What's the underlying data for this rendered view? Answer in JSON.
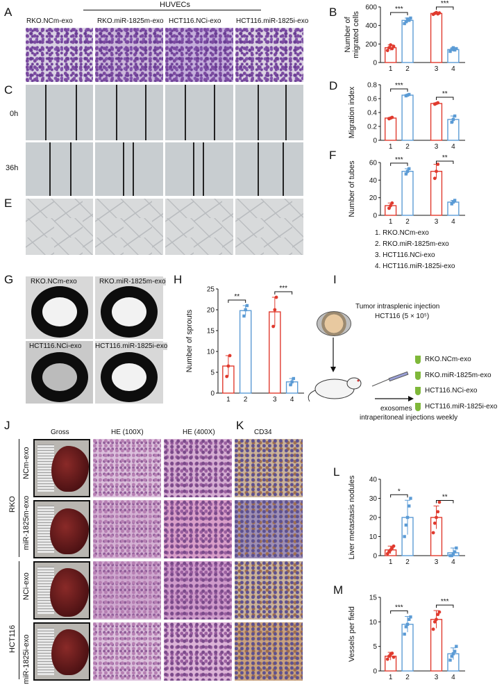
{
  "panels": {
    "A": "A",
    "B": "B",
    "C": "C",
    "D": "D",
    "E": "E",
    "F": "F",
    "G": "G",
    "H": "H",
    "I": "I",
    "J": "J",
    "K": "K",
    "L": "L",
    "M": "M"
  },
  "huvec_title": "HUVECs",
  "huvec_cols": [
    "RKO.NCm-exo",
    "RKO.miR-1825m-exo",
    "HCT116.NCi-exo",
    "HCT116.miR-1825i-exo"
  ],
  "time_labels": [
    "0h",
    "36h"
  ],
  "legend_items": [
    "1. RKO.NCm-exo",
    "2. RKO.miR-1825m-exo",
    "3. HCT116.NCi-exo",
    "4. HCT116.miR-1825i-exo"
  ],
  "aortic_labels": [
    "RKO.NCm-exo",
    "RKO.miR-1825m-exo",
    "HCT116.NCi-exo",
    "HCT116.miR-1825i-exo"
  ],
  "schematic": {
    "injection_line1": "Tumor intrasplenic injection",
    "injection_line2": "HCT116 (5 × 10⁵)",
    "exo_list": [
      "RKO.NCm-exo",
      "RKO.miR-1825m-exo",
      "HCT116.NCi-exo",
      "HCT116.miR-1825i-exo"
    ],
    "exosomes_label": "exosomes",
    "weekly_label": "intraperitoneal injections weekly"
  },
  "j_headers": [
    "Gross",
    "HE (100X)",
    "HE (400X)",
    "CD34"
  ],
  "j_row_labels": [
    "NCm-exo",
    "miR-1825m-exo",
    "NCi-exo",
    "miR-1825i-exo"
  ],
  "j_groups": [
    "RKO",
    "HCT116"
  ],
  "colors": {
    "red": "#e03a2e",
    "blue": "#5b9bd5",
    "axis": "#111111"
  },
  "chart_data": [
    {
      "id": "B",
      "type": "bar",
      "categories": [
        "1",
        "2",
        "3",
        "4"
      ],
      "values": [
        160,
        455,
        530,
        140
      ],
      "errors": [
        30,
        25,
        10,
        20
      ],
      "points": [
        [
          130,
          160,
          190,
          150,
          175
        ],
        [
          420,
          440,
          470,
          455,
          480
        ],
        [
          520,
          530,
          540,
          525,
          535
        ],
        [
          120,
          140,
          160,
          135,
          150
        ]
      ],
      "ylabel": "Number of migrated cells",
      "ylabel_lines": [
        "Number of",
        "migrated cells"
      ],
      "ylim": [
        0,
        600
      ],
      "yticks": [
        0,
        200,
        400,
        600
      ],
      "sig": [
        {
          "pair": [
            1,
            2
          ],
          "label": "***"
        },
        {
          "pair": [
            3,
            4
          ],
          "label": "***"
        }
      ]
    },
    {
      "id": "D",
      "type": "bar",
      "categories": [
        "1",
        "2",
        "3",
        "4"
      ],
      "values": [
        0.32,
        0.65,
        0.53,
        0.3
      ],
      "errors": [
        0.01,
        0.01,
        0.01,
        0.05
      ],
      "points": [
        [
          0.31,
          0.32,
          0.33
        ],
        [
          0.64,
          0.65,
          0.66
        ],
        [
          0.52,
          0.53,
          0.54
        ],
        [
          0.26,
          0.3,
          0.35
        ]
      ],
      "ylabel": "Migration index",
      "ylim": [
        0,
        0.8
      ],
      "yticks": [
        0,
        0.2,
        0.4,
        0.6,
        0.8
      ],
      "sig": [
        {
          "pair": [
            1,
            2
          ],
          "label": "***"
        },
        {
          "pair": [
            3,
            4
          ],
          "label": "**"
        }
      ]
    },
    {
      "id": "F",
      "type": "bar",
      "categories": [
        "1",
        "2",
        "3",
        "4"
      ],
      "values": [
        11,
        50,
        50,
        15
      ],
      "errors": [
        3,
        3,
        8,
        2
      ],
      "points": [
        [
          8,
          11,
          14
        ],
        [
          47,
          50,
          53
        ],
        [
          42,
          50,
          58
        ],
        [
          13,
          15,
          17
        ]
      ],
      "ylabel": "Number of tubes",
      "ylim": [
        0,
        60
      ],
      "yticks": [
        0,
        20,
        40,
        60
      ],
      "sig": [
        {
          "pair": [
            1,
            2
          ],
          "label": "***"
        },
        {
          "pair": [
            3,
            4
          ],
          "label": "**"
        }
      ]
    },
    {
      "id": "H",
      "type": "bar",
      "categories": [
        "1",
        "2",
        "3",
        "4"
      ],
      "values": [
        6.5,
        19.8,
        19.5,
        2.7
      ],
      "errors": [
        2.5,
        1.2,
        3.5,
        0.8
      ],
      "points": [
        [
          4,
          6.5,
          9
        ],
        [
          18.5,
          20,
          21
        ],
        [
          16,
          20,
          23
        ],
        [
          2,
          2.7,
          3.5
        ]
      ],
      "ylabel": "Number of sprouts",
      "ylim": [
        0,
        25
      ],
      "yticks": [
        0,
        5,
        10,
        15,
        20,
        25
      ],
      "sig": [
        {
          "pair": [
            1,
            2
          ],
          "label": "**"
        },
        {
          "pair": [
            3,
            4
          ],
          "label": "***"
        }
      ]
    },
    {
      "id": "L",
      "type": "bar",
      "categories": [
        "1",
        "2",
        "3",
        "4"
      ],
      "values": [
        3,
        20,
        20,
        1.5
      ],
      "errors": [
        2,
        9,
        6,
        2.5
      ],
      "points": [
        [
          1,
          2,
          3,
          4,
          5
        ],
        [
          10,
          16,
          20,
          26,
          30
        ],
        [
          12,
          17,
          20,
          23,
          28
        ],
        [
          0,
          0,
          1,
          2,
          4
        ]
      ],
      "ylabel": "Liver metastasis nodules",
      "ylim": [
        0,
        40
      ],
      "yticks": [
        0,
        10,
        20,
        30,
        40
      ],
      "sig": [
        {
          "pair": [
            1,
            2
          ],
          "label": "*"
        },
        {
          "pair": [
            3,
            4
          ],
          "label": "**"
        }
      ]
    },
    {
      "id": "M",
      "type": "bar",
      "categories": [
        "1",
        "2",
        "3",
        "4"
      ],
      "values": [
        3,
        9.5,
        10.5,
        3.5
      ],
      "errors": [
        0.8,
        1.6,
        1.8,
        1.2
      ],
      "points": [
        [
          2.4,
          3,
          3.4,
          3.6,
          2.8
        ],
        [
          7.5,
          9,
          9.5,
          10.5,
          11
        ],
        [
          8.5,
          10,
          10.5,
          11.5,
          12
        ],
        [
          2.2,
          3,
          3.5,
          4,
          5
        ]
      ],
      "ylabel": "Vessels per field",
      "ylim": [
        0,
        15
      ],
      "yticks": [
        0,
        5,
        10,
        15
      ],
      "sig": [
        {
          "pair": [
            1,
            2
          ],
          "label": "***"
        },
        {
          "pair": [
            3,
            4
          ],
          "label": "***"
        }
      ]
    }
  ]
}
